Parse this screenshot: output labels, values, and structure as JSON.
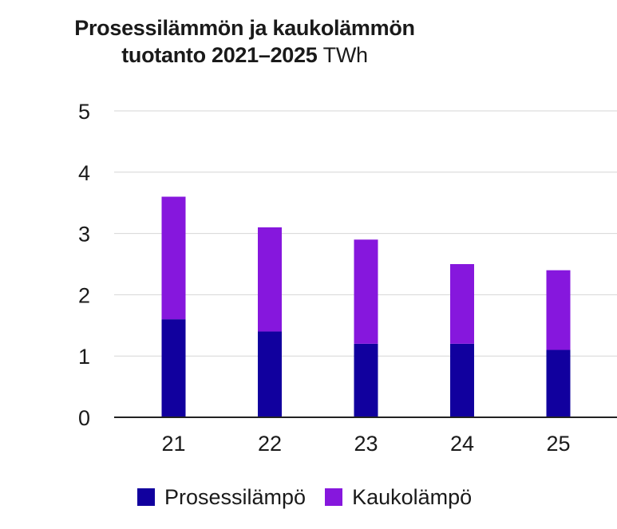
{
  "chart_data": {
    "type": "bar",
    "stacked": true,
    "title_bold": "Prosessilämmön ja kaukolämmön",
    "title_bold_2": "tuotanto 2021–2025",
    "title_unit": "TWh",
    "xlabel": "",
    "ylabel": "",
    "categories": [
      "21",
      "22",
      "23",
      "24",
      "25"
    ],
    "series": [
      {
        "name": "Prosessilämpö",
        "values": [
          1.6,
          1.4,
          1.2,
          1.2,
          1.1
        ],
        "color": "#11009e"
      },
      {
        "name": "Kaukolämpö",
        "values": [
          2.0,
          1.7,
          1.7,
          1.3,
          1.3
        ],
        "color": "#8617dd"
      }
    ],
    "ylim": [
      0,
      5
    ],
    "yticks": [
      "0",
      "1",
      "2",
      "3",
      "4",
      "5"
    ],
    "grid": true,
    "legend_position": "bottom-left"
  }
}
